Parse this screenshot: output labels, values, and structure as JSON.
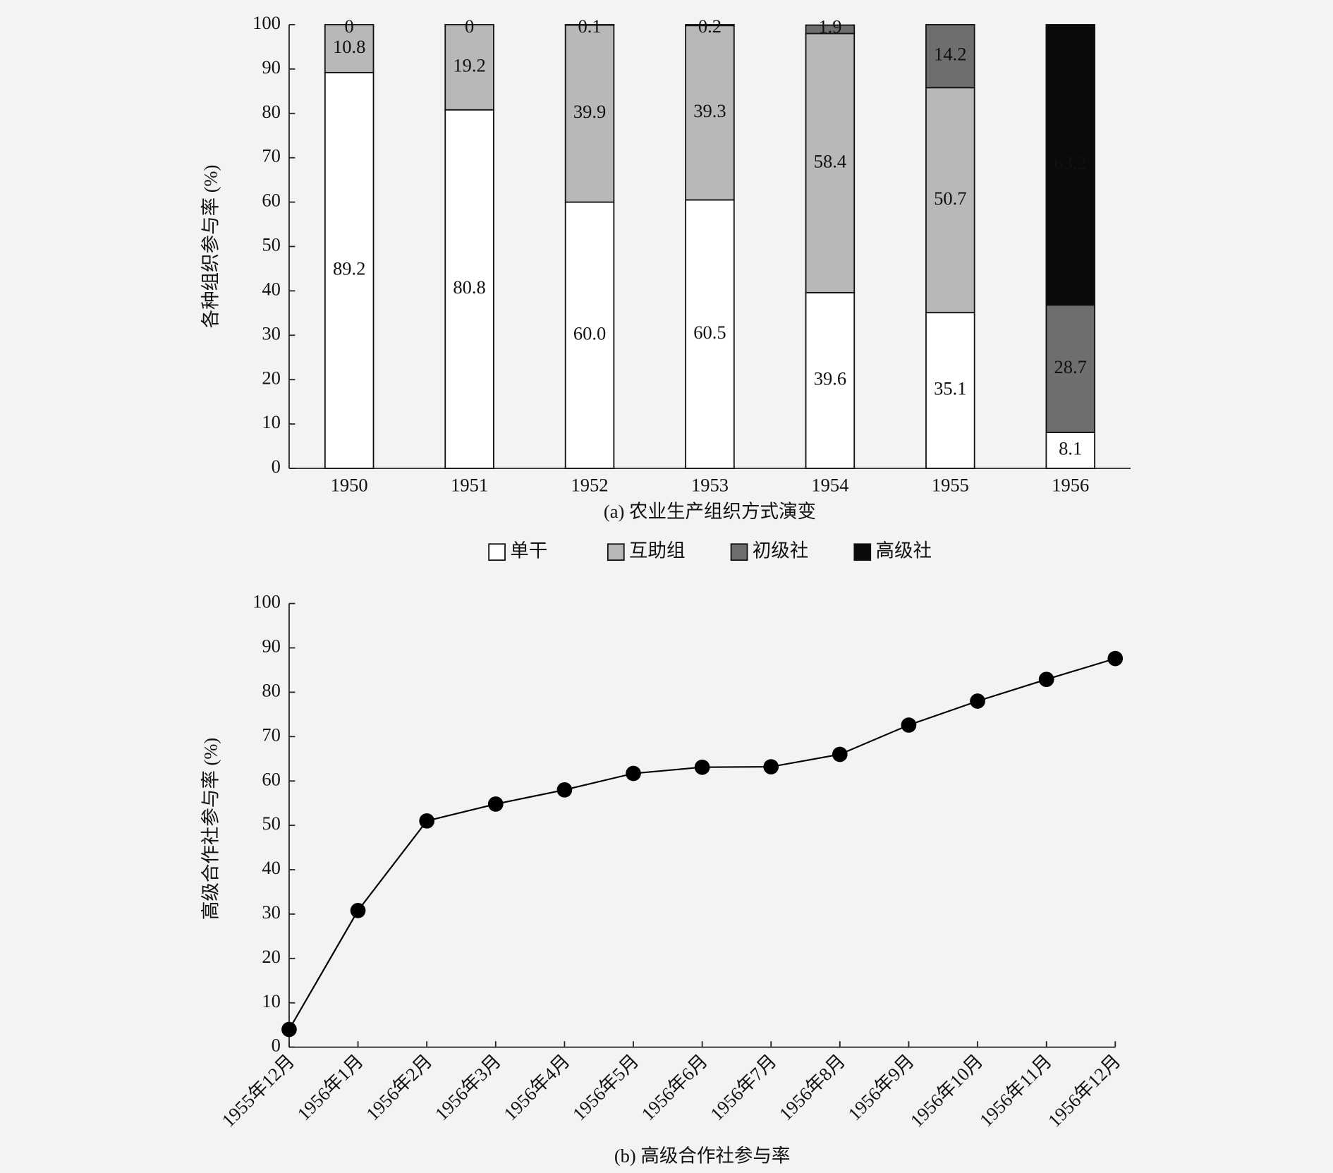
{
  "chart_data": [
    {
      "type": "stacked_bar",
      "caption": "(a) 农业生产组织方式演变",
      "y_label": "各种组织参与率 (%)",
      "categories": [
        "1950",
        "1951",
        "1952",
        "1953",
        "1954",
        "1955",
        "1956"
      ],
      "series": [
        {
          "name": "单干",
          "color": "#ffffff",
          "values": [
            89.2,
            80.8,
            60,
            60.5,
            39.6,
            35.1,
            8.1
          ],
          "value_labels": [
            "89.2",
            "80.8",
            "60.0",
            "60.5",
            "39.6",
            "35.1",
            "8.1"
          ]
        },
        {
          "name": "互助组",
          "color": "#b8b8b8",
          "values": [
            10.8,
            19.2,
            39.9,
            39.3,
            58.4,
            50.7,
            null
          ]
        },
        {
          "name": "初级社",
          "color": "#6e6e6e",
          "values": [
            0,
            0,
            0.1,
            0.2,
            1.9,
            14.2,
            28.7
          ]
        },
        {
          "name": "高级社",
          "color": "#0a0a0a",
          "values": [
            null,
            null,
            null,
            null,
            null,
            null,
            63.2
          ]
        }
      ],
      "ylim": [
        0,
        100
      ],
      "yticks": [
        0,
        10,
        20,
        30,
        40,
        50,
        60,
        70,
        80,
        90,
        100
      ],
      "legend": "bottom"
    },
    {
      "type": "line",
      "caption": "(b) 高级合作社参与率",
      "y_label": "高级合作社参与率 (%)",
      "categories": [
        "1955年12月",
        "1956年1月",
        "1956年2月",
        "1956年3月",
        "1956年4月",
        "1956年5月",
        "1956年6月",
        "1956年7月",
        "1956年8月",
        "1956年9月",
        "1956年10月",
        "1956年11月",
        "1956年12月"
      ],
      "series": [
        {
          "name": "高级合作社",
          "color": "#000000",
          "values": [
            4,
            30.8,
            51,
            54.8,
            58,
            61.7,
            63.1,
            63.2,
            66,
            72.6,
            78,
            82.9,
            87.6
          ]
        }
      ],
      "ylim": [
        0,
        100
      ],
      "yticks": [
        0,
        10,
        20,
        30,
        40,
        50,
        60,
        70,
        80,
        90,
        100
      ]
    }
  ]
}
